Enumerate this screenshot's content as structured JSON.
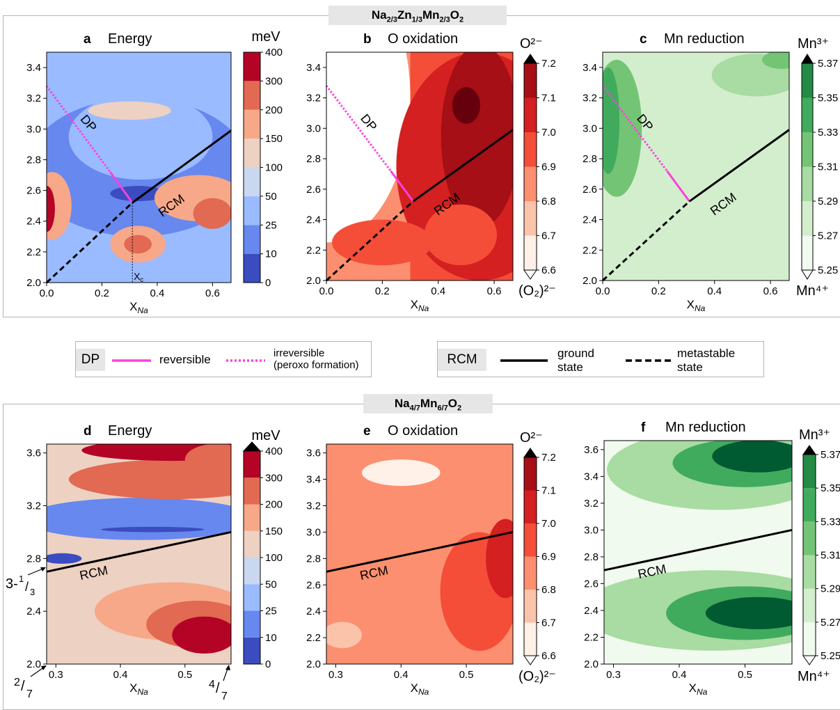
{
  "panels_top_title": "Na₂/₃Zn₁/₃Mn₂/₃O₂",
  "panels_bottom_title": "Na₄/₇Mn₆/₇O₂",
  "legend": {
    "dp_tag": "DP",
    "reversible": "reversible",
    "irreversible_line1": "irreversible",
    "irreversible_line2": "(peroxo formation)",
    "rcm_tag": "RCM",
    "ground_line1": "ground",
    "ground_line2": "state",
    "metastable_line1": "metastable",
    "metastable_line2": "state",
    "colors": {
      "reversible": "#ff3fe0",
      "irreversible": "#ff3fe0",
      "ground": "#000000",
      "metastable": "#000000"
    }
  },
  "chart_data": [
    {
      "type": "heatmap",
      "letter": "a",
      "title": "Energy",
      "xlabel": "X_Na",
      "xlim": [
        0.0,
        0.667
      ],
      "ylim": [
        2.0,
        3.5
      ],
      "xticks": [
        "0.0",
        "0.2",
        "0.4",
        "0.6"
      ],
      "yticks": [
        "2.0",
        "2.2",
        "2.4",
        "2.6",
        "2.8",
        "3.0",
        "3.2",
        "3.4"
      ],
      "colorbar": {
        "unit": "meV",
        "cmap": "coolwarm",
        "levels": [
          "0",
          "10",
          "25",
          "50",
          "100",
          "150",
          "200",
          "300",
          "400"
        ]
      },
      "lines": [
        {
          "name": "DP irreversible",
          "style": "dotted",
          "color": "#ff3fe0",
          "x": [
            0.0,
            0.23
          ],
          "y": [
            3.28,
            2.72
          ]
        },
        {
          "name": "DP reversible",
          "style": "solid",
          "color": "#ff3fe0",
          "x": [
            0.23,
            0.31
          ],
          "y": [
            2.72,
            2.52
          ]
        },
        {
          "name": "RCM ground",
          "style": "solid",
          "color": "#000000",
          "x": [
            0.31,
            0.667
          ],
          "y": [
            2.52,
            2.99
          ]
        },
        {
          "name": "RCM metastable",
          "style": "dashed",
          "color": "#000000",
          "x": [
            0.0,
            0.31
          ],
          "y": [
            2.0,
            2.52
          ]
        }
      ],
      "annotations": [
        "DP",
        "RCM",
        "X_c"
      ],
      "xc": 0.31
    },
    {
      "type": "heatmap",
      "letter": "b",
      "title": "O oxidation",
      "xlabel": "X_Na",
      "xlim": [
        0.0,
        0.667
      ],
      "ylim": [
        2.0,
        3.5
      ],
      "xticks": [
        "0.0",
        "0.2",
        "0.4",
        "0.6"
      ],
      "yticks": [
        "2.0",
        "2.2",
        "2.4",
        "2.6",
        "2.8",
        "3.0",
        "3.2",
        "3.4"
      ],
      "colorbar": {
        "top": "O²⁻",
        "bottom": "(O₂)²⁻",
        "cmap": "reds",
        "levels": [
          "6.6",
          "6.7",
          "6.8",
          "6.9",
          "7.0",
          "7.1",
          "7.2"
        ]
      },
      "lines": [
        {
          "name": "DP irreversible",
          "style": "dotted",
          "color": "#ff3fe0",
          "x": [
            0.0,
            0.23
          ],
          "y": [
            3.28,
            2.72
          ]
        },
        {
          "name": "DP reversible",
          "style": "solid",
          "color": "#ff3fe0",
          "x": [
            0.23,
            0.31
          ],
          "y": [
            2.72,
            2.52
          ]
        },
        {
          "name": "RCM ground",
          "style": "solid",
          "color": "#000000",
          "x": [
            0.31,
            0.667
          ],
          "y": [
            2.52,
            2.99
          ]
        },
        {
          "name": "RCM metastable",
          "style": "dashed",
          "color": "#000000",
          "x": [
            0.0,
            0.31
          ],
          "y": [
            2.0,
            2.52
          ]
        }
      ],
      "annotations": [
        "DP",
        "RCM"
      ]
    },
    {
      "type": "heatmap",
      "letter": "c",
      "title": "Mn reduction",
      "xlabel": "X_Na",
      "xlim": [
        0.0,
        0.667
      ],
      "ylim": [
        2.0,
        3.5
      ],
      "xticks": [
        "0.0",
        "0.2",
        "0.4",
        "0.6"
      ],
      "yticks": [
        "2.0",
        "2.2",
        "2.4",
        "2.6",
        "2.8",
        "3.0",
        "3.2",
        "3.4"
      ],
      "colorbar": {
        "top": "Mn³⁺",
        "bottom": "Mn⁴⁺",
        "cmap": "greens",
        "levels": [
          "5.25",
          "5.27",
          "5.29",
          "5.31",
          "5.33",
          "5.35",
          "5.37"
        ]
      },
      "lines": [
        {
          "name": "DP irreversible",
          "style": "dotted",
          "color": "#ff3fe0",
          "x": [
            0.0,
            0.23
          ],
          "y": [
            3.28,
            2.72
          ]
        },
        {
          "name": "DP reversible",
          "style": "solid",
          "color": "#ff3fe0",
          "x": [
            0.23,
            0.31
          ],
          "y": [
            2.72,
            2.52
          ]
        },
        {
          "name": "RCM ground",
          "style": "solid",
          "color": "#000000",
          "x": [
            0.31,
            0.667
          ],
          "y": [
            2.52,
            2.99
          ]
        },
        {
          "name": "RCM metastable",
          "style": "dashed",
          "color": "#000000",
          "x": [
            0.0,
            0.31
          ],
          "y": [
            2.0,
            2.52
          ]
        }
      ],
      "annotations": [
        "DP",
        "RCM"
      ]
    },
    {
      "type": "heatmap",
      "letter": "d",
      "title": "Energy",
      "xlabel": "X_Na",
      "xlim": [
        0.2857,
        0.5714
      ],
      "ylim": [
        2.0,
        3.667
      ],
      "xticks": [
        "0.3",
        "0.4",
        "0.5"
      ],
      "yticks": [
        "2.0",
        "2.4",
        "2.8",
        "3.2",
        "3.6"
      ],
      "colorbar": {
        "unit": "meV",
        "cmap": "coolwarm",
        "levels": [
          "0",
          "10",
          "25",
          "50",
          "100",
          "150",
          "200",
          "300",
          "400"
        ]
      },
      "lines": [
        {
          "name": "RCM ground",
          "style": "solid",
          "color": "#000000",
          "x": [
            0.2857,
            0.5714
          ],
          "y": [
            2.7,
            3.0
          ]
        }
      ],
      "annotations": [
        "RCM",
        "3-1/3",
        "2/7",
        "4/7"
      ]
    },
    {
      "type": "heatmap",
      "letter": "e",
      "title": "O oxidation",
      "xlabel": "X_Na",
      "xlim": [
        0.2857,
        0.5714
      ],
      "ylim": [
        2.0,
        3.667
      ],
      "xticks": [
        "0.3",
        "0.4",
        "0.5"
      ],
      "yticks": [
        "2.0",
        "2.2",
        "2.4",
        "2.6",
        "2.8",
        "3.0",
        "3.2",
        "3.4",
        "3.6"
      ],
      "colorbar": {
        "top": "O²⁻",
        "bottom": "(O₂)²⁻",
        "cmap": "reds",
        "levels": [
          "6.6",
          "6.7",
          "6.8",
          "6.9",
          "7.0",
          "7.1",
          "7.2"
        ]
      },
      "lines": [
        {
          "name": "RCM ground",
          "style": "solid",
          "color": "#000000",
          "x": [
            0.2857,
            0.5714
          ],
          "y": [
            2.7,
            3.0
          ]
        }
      ],
      "annotations": [
        "RCM"
      ]
    },
    {
      "type": "heatmap",
      "letter": "f",
      "title": "Mn reduction",
      "xlabel": "X_Na",
      "xlim": [
        0.2857,
        0.5714
      ],
      "ylim": [
        2.0,
        3.667
      ],
      "xticks": [
        "0.3",
        "0.4",
        "0.5"
      ],
      "yticks": [
        "2.0",
        "2.2",
        "2.4",
        "2.6",
        "2.8",
        "3.0",
        "3.2",
        "3.4",
        "3.6"
      ],
      "colorbar": {
        "top": "Mn³⁺",
        "bottom": "Mn⁴⁺",
        "cmap": "greens",
        "levels": [
          "5.25",
          "5.27",
          "5.29",
          "5.31",
          "5.33",
          "5.35",
          "5.37"
        ]
      },
      "lines": [
        {
          "name": "RCM ground",
          "style": "solid",
          "color": "#000000",
          "x": [
            0.2857,
            0.5714
          ],
          "y": [
            2.7,
            3.0
          ]
        }
      ],
      "annotations": [
        "RCM"
      ]
    }
  ]
}
